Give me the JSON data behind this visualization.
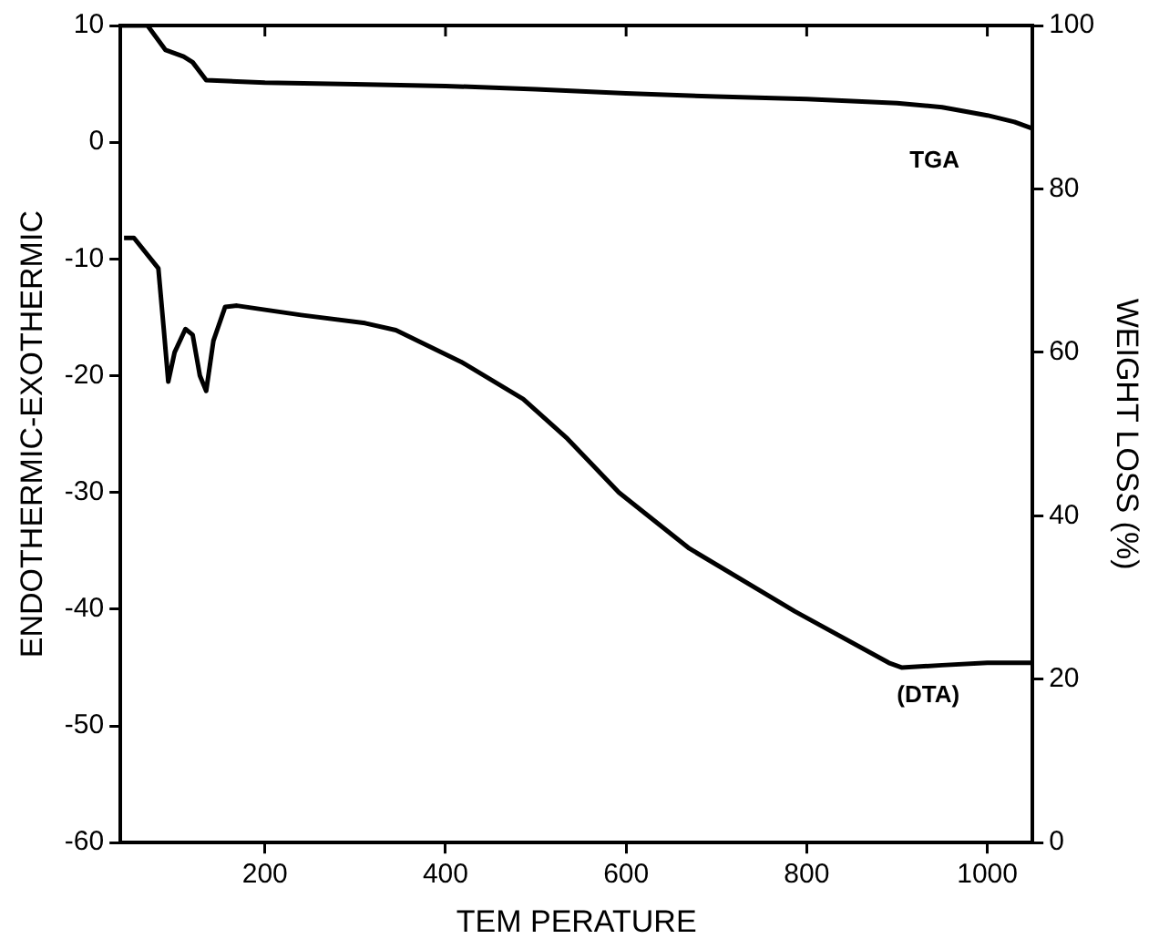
{
  "chart_data": {
    "type": "line",
    "xlabel": "TEM PERATURE",
    "ylabel": "ENDOTHERMIC-EXOTHERMIC",
    "y2label": "WEIGHT LOSS (%)",
    "xlim": [
      40,
      1050
    ],
    "xticks": [
      200,
      400,
      600,
      800,
      1000
    ],
    "ylim": [
      -60,
      10
    ],
    "yticks": [
      -60,
      -50,
      -40,
      -30,
      -20,
      -10,
      0,
      10
    ],
    "y2lim": [
      0,
      100
    ],
    "y2ticks": [
      0,
      20,
      40,
      60,
      80,
      100
    ],
    "grid": false,
    "legend": false,
    "marker": "none",
    "line_style": "solid",
    "series": [
      {
        "name": "TGA",
        "color": "#000000",
        "axis": "y2",
        "x": [
          40,
          70,
          80,
          90,
          110,
          120,
          135,
          200,
          300,
          400,
          500,
          600,
          700,
          800,
          900,
          950,
          1000,
          1030,
          1050
        ],
        "values": [
          100,
          100,
          98.5,
          97,
          96.2,
          95.5,
          93.3,
          93,
          92.8,
          92.6,
          92.2,
          91.7,
          91.3,
          91,
          90.5,
          90,
          89,
          88.2,
          87.4
        ]
      },
      {
        "name": "(DTA)",
        "color": "#000000",
        "axis": "y",
        "x": [
          44,
          55,
          82,
          88,
          93,
          100,
          112,
          120,
          128,
          135,
          143,
          156,
          169,
          240,
          311,
          345,
          417,
          486,
          535,
          592,
          670,
          787,
          891,
          905,
          950,
          1000,
          1050
        ],
        "values": [
          -8.2,
          -8.2,
          -10.8,
          -16,
          -20.5,
          -18,
          -16,
          -16.5,
          -20,
          -21.3,
          -17,
          -14.1,
          -14,
          -14.8,
          -15.5,
          -16.1,
          -18.8,
          -22,
          -25.4,
          -30,
          -34.8,
          -40.2,
          -44.6,
          -45,
          -44.8,
          -44.6,
          -44.6
        ]
      }
    ]
  }
}
